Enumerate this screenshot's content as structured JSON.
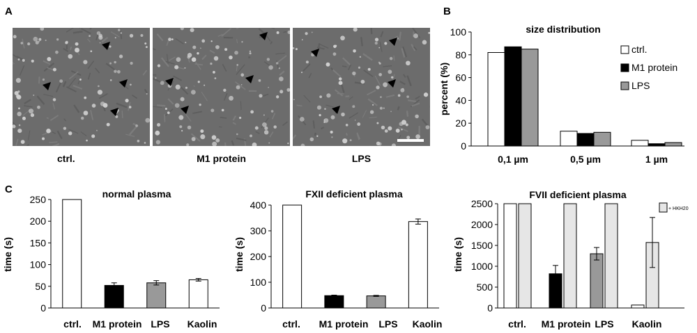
{
  "panel_letters": {
    "a": "A",
    "b": "B",
    "c": "C"
  },
  "micrographs": {
    "labels": [
      "ctrl.",
      "M1 protein",
      "LPS"
    ]
  },
  "colors": {
    "ctrl": "#ffffff",
    "m1": "#000000",
    "lps": "#999999",
    "hkh20": "#e6e6e6",
    "micrograph": "#6c6c6c"
  },
  "chart_data": [
    {
      "id": "B",
      "type": "bar",
      "title": "size distribution",
      "xlabel": "",
      "ylabel": "percent (%)",
      "ylim": [
        0,
        100
      ],
      "yticks": [
        0,
        20,
        40,
        60,
        80,
        100
      ],
      "categories": [
        "0,1 µm",
        "0,5 µm",
        "1 µm"
      ],
      "series": [
        {
          "name": "ctrl.",
          "color": "#ffffff",
          "values": [
            82,
            13,
            5
          ]
        },
        {
          "name": "M1 protein",
          "color": "#000000",
          "values": [
            87,
            11,
            2
          ]
        },
        {
          "name": "LPS",
          "color": "#999999",
          "values": [
            85,
            12,
            3
          ]
        }
      ],
      "legend": "right"
    },
    {
      "id": "C1",
      "type": "bar",
      "title": "normal plasma",
      "xlabel": "",
      "ylabel": "time (s)",
      "ylim": [
        0,
        250
      ],
      "yticks": [
        0,
        50,
        100,
        150,
        200,
        250
      ],
      "categories": [
        "ctrl.",
        "M1 protein",
        "LPS",
        "Kaolin"
      ],
      "values": [
        250,
        52,
        58,
        65
      ],
      "errors": [
        0,
        6,
        5,
        3
      ],
      "bar_colors": [
        "#ffffff",
        "#000000",
        "#999999",
        "#ffffff"
      ]
    },
    {
      "id": "C2",
      "type": "bar",
      "title": "FXII deficient plasma",
      "xlabel": "",
      "ylabel": "time (s)",
      "ylim": [
        0,
        400
      ],
      "yticks": [
        0,
        100,
        200,
        300,
        400
      ],
      "categories": [
        "ctrl.",
        "M1 protein",
        "LPS",
        "Kaolin"
      ],
      "values": [
        400,
        48,
        47,
        336
      ],
      "errors": [
        0,
        2,
        2,
        10
      ],
      "bar_colors": [
        "#ffffff",
        "#000000",
        "#999999",
        "#ffffff"
      ]
    },
    {
      "id": "C3",
      "type": "bar",
      "title": "FVII deficient plasma",
      "xlabel": "",
      "ylabel": "time (s)",
      "ylim": [
        0,
        2500
      ],
      "yticks": [
        0,
        500,
        1000,
        1500,
        2000,
        2500
      ],
      "categories": [
        "ctrl.",
        "M1 protein",
        "LPS",
        "Kaolin"
      ],
      "series": [
        {
          "name": "",
          "values": [
            2500,
            820,
            1300,
            70
          ],
          "errors": [
            0,
            200,
            150,
            0
          ],
          "colors": [
            "#ffffff",
            "#000000",
            "#999999",
            "#ffffff"
          ]
        },
        {
          "name": "+ HKH20",
          "color": "#e6e6e6",
          "values": [
            2500,
            2500,
            2500,
            1570
          ],
          "errors": [
            0,
            0,
            0,
            600
          ]
        }
      ],
      "legend": "top-right"
    }
  ]
}
